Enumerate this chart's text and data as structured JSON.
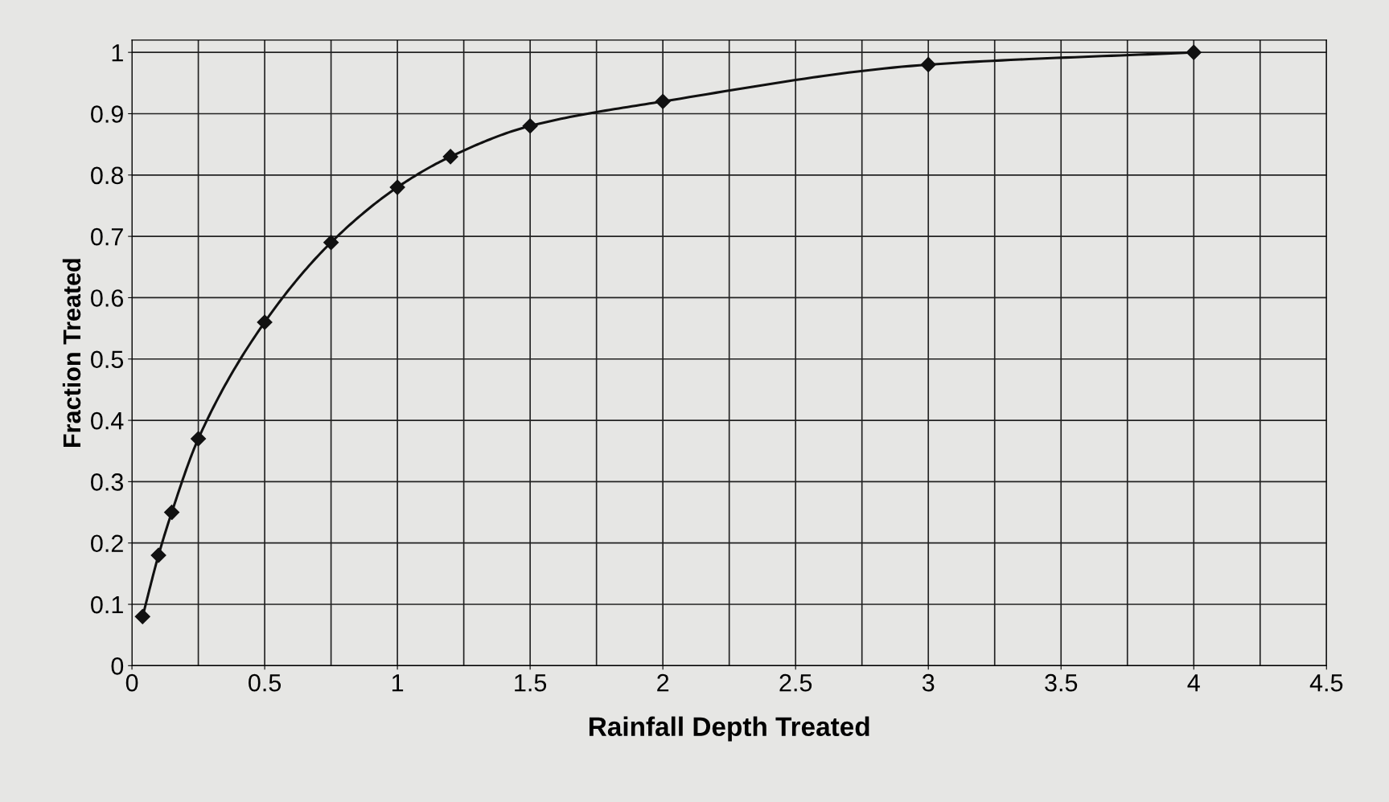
{
  "chart_data": {
    "type": "line",
    "xlabel": "Rainfall Depth Treated",
    "ylabel": "Fraction Treated",
    "x": [
      0.04,
      0.1,
      0.15,
      0.25,
      0.5,
      0.75,
      1.0,
      1.2,
      1.5,
      2.0,
      3.0,
      4.0
    ],
    "series": [
      {
        "color": "#111111",
        "values": [
          0.08,
          0.18,
          0.25,
          0.37,
          0.56,
          0.69,
          0.78,
          0.83,
          0.88,
          0.92,
          0.98,
          1.0
        ]
      }
    ],
    "xlim": [
      0,
      4.5
    ],
    "xticks": [
      0,
      0.5,
      1,
      1.5,
      2,
      2.5,
      3,
      3.5,
      4,
      4.5
    ],
    "ylim": [
      0,
      1.02
    ],
    "yticks": [
      0,
      0.1,
      0.2,
      0.3,
      0.4,
      0.5,
      0.6,
      0.7,
      0.8,
      0.9,
      1
    ],
    "grid": true,
    "marker": "diamond",
    "line_style": "solid",
    "legend": false
  }
}
